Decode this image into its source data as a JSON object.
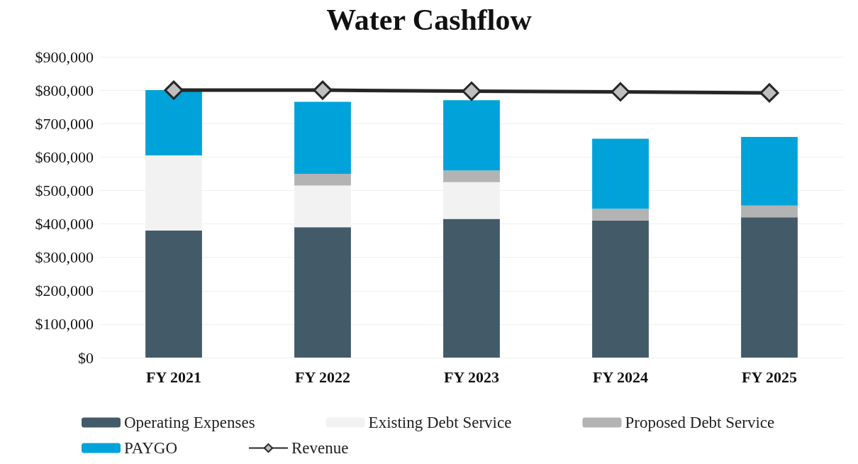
{
  "chart_data": {
    "type": "bar",
    "title": "Water Cashflow",
    "stacked": true,
    "categories": [
      "FY 2021",
      "FY 2022",
      "FY 2023",
      "FY 2024",
      "FY 2025"
    ],
    "series": [
      {
        "name": "Operating Expenses",
        "color": "#435a69",
        "values": [
          380000,
          390000,
          415000,
          410000,
          420000
        ]
      },
      {
        "name": "Existing Debt Service",
        "color": "#f2f2f2",
        "values": [
          225000,
          125000,
          110000,
          0,
          0
        ]
      },
      {
        "name": "Proposed Debt Service",
        "color": "#b3b3b3",
        "values": [
          0,
          35000,
          35000,
          35000,
          35000
        ]
      },
      {
        "name": "PAYGO",
        "color": "#00a3d9",
        "values": [
          195000,
          215000,
          210000,
          210000,
          205000
        ]
      },
      {
        "name": "Revenue",
        "type": "line",
        "color": "#262626",
        "marker": "diamond",
        "values": [
          800000,
          800000,
          797000,
          795000,
          792000
        ]
      }
    ],
    "ylim": [
      0,
      900000
    ],
    "yticks": [
      {
        "value": 0,
        "label": "$0"
      },
      {
        "value": 100000,
        "label": "$100,000"
      },
      {
        "value": 200000,
        "label": "$200,000"
      },
      {
        "value": 300000,
        "label": "$300,000"
      },
      {
        "value": 400000,
        "label": "$400,000"
      },
      {
        "value": 500000,
        "label": "$500,000"
      },
      {
        "value": 600000,
        "label": "$600,000"
      },
      {
        "value": 700000,
        "label": "$700,000"
      },
      {
        "value": 800000,
        "label": "$800,000"
      },
      {
        "value": 900000,
        "label": "$900,000"
      }
    ],
    "grid": "y",
    "legend": "bottom"
  }
}
